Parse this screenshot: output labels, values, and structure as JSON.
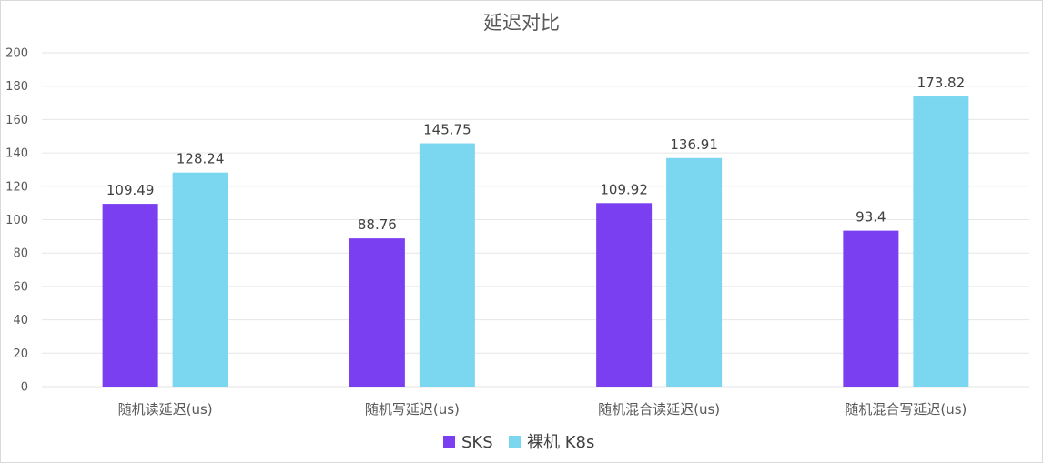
{
  "chart_data": {
    "type": "bar",
    "title": "延迟对比",
    "categories": [
      "随机读延迟(us)",
      "随机写延迟(us)",
      "随机混合读延迟(us)",
      "随机混合写延迟(us)"
    ],
    "series": [
      {
        "name": "SKS",
        "values": [
          109.49,
          88.76,
          109.92,
          93.4
        ],
        "labels": [
          "109.49",
          "88.76",
          "109.92",
          "93.4"
        ],
        "color": "#7b3ff2"
      },
      {
        "name": "裸机 K8s",
        "values": [
          128.24,
          145.75,
          136.91,
          173.82
        ],
        "labels": [
          "128.24",
          "145.75",
          "136.91",
          "173.82"
        ],
        "color": "#7bd6f0"
      }
    ],
    "ylim": [
      0,
      200
    ],
    "yticks": [
      "0",
      "20",
      "40",
      "60",
      "80",
      "100",
      "120",
      "140",
      "160",
      "180",
      "200"
    ],
    "grid": true,
    "legend": "bottom"
  }
}
